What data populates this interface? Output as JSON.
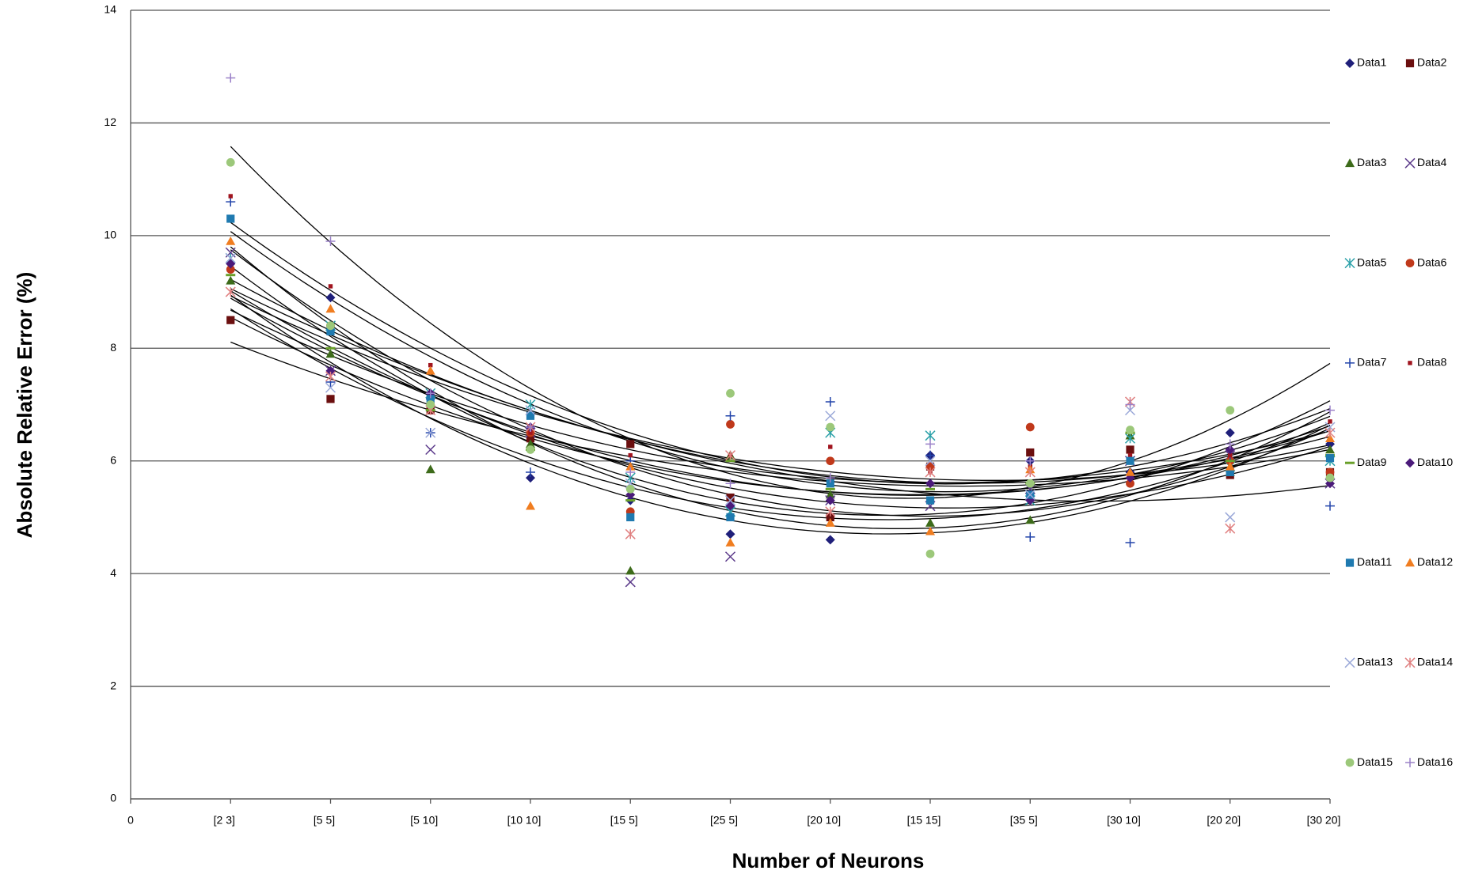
{
  "chart_data": {
    "type": "scatter",
    "x_label": "Number of Neurons",
    "y_label": "Absolute Relative Error (%)",
    "x": [
      1,
      2,
      3,
      4,
      5,
      6,
      7,
      8,
      9,
      10,
      11,
      12
    ],
    "xlim": [
      0,
      12
    ],
    "xticks": [
      0,
      {
        "value": 1,
        "label": "[2 3]"
      },
      {
        "value": 2,
        "label": "[5 5]"
      },
      {
        "value": 3,
        "label": "[5 10]"
      },
      {
        "value": 4,
        "label": "[10 10]"
      },
      {
        "value": 5,
        "label": "[15 5]"
      },
      {
        "value": 6,
        "label": "[25 5]"
      },
      {
        "value": 7,
        "label": "[20 10]"
      },
      {
        "value": 8,
        "label": "[15 15]"
      },
      {
        "value": 9,
        "label": "[35 5]"
      },
      {
        "value": 10,
        "label": "[30 10]"
      },
      {
        "value": 11,
        "label": "[20 20]"
      },
      {
        "value": 12,
        "label": "[30 20]"
      }
    ],
    "ylim": [
      0,
      14
    ],
    "yticks": [
      0,
      2,
      4,
      6,
      8,
      10,
      12,
      14
    ],
    "grid": true,
    "trendline": "poly2",
    "legend": "right",
    "series": [
      {
        "name": "Data1",
        "color": "#1f1f7a",
        "marker": "diamond",
        "values": [
          9.5,
          8.9,
          7.1,
          5.7,
          5.3,
          4.7,
          4.6,
          6.1,
          6.0,
          5.8,
          6.5,
          6.3
        ]
      },
      {
        "name": "Data2",
        "color": "#6b0f0f",
        "marker": "square",
        "values": [
          8.5,
          7.1,
          6.9,
          6.4,
          6.3,
          5.35,
          5.0,
          5.9,
          6.15,
          6.2,
          5.75,
          5.8
        ]
      },
      {
        "name": "Data3",
        "color": "#3d6b1a",
        "marker": "triangle",
        "values": [
          9.2,
          7.9,
          5.85,
          6.3,
          4.05,
          6.1,
          5.4,
          4.9,
          4.95,
          6.45,
          5.8,
          6.2
        ]
      },
      {
        "name": "Data4",
        "color": "#5b3a8a",
        "marker": "x",
        "values": [
          9.7,
          7.6,
          6.2,
          6.5,
          3.85,
          4.3,
          5.3,
          5.2,
          5.5,
          6.0,
          6.1,
          5.6
        ]
      },
      {
        "name": "Data5",
        "color": "#2aa0a8",
        "marker": "asterisk",
        "values": [
          9.6,
          8.4,
          7.2,
          7.0,
          5.7,
          5.1,
          6.5,
          6.45,
          5.3,
          6.4,
          5.9,
          6.0
        ]
      },
      {
        "name": "Data6",
        "color": "#c0391b",
        "marker": "circle",
        "values": [
          9.4,
          8.4,
          7.0,
          6.5,
          5.1,
          6.65,
          6.0,
          5.9,
          6.6,
          5.6,
          6.0,
          5.8
        ]
      },
      {
        "name": "Data7",
        "color": "#2244aa",
        "marker": "plus",
        "values": [
          10.6,
          7.4,
          6.5,
          5.8,
          6.0,
          6.8,
          7.05,
          6.1,
          4.65,
          4.55,
          6.0,
          5.2
        ]
      },
      {
        "name": "Data8",
        "color": "#a0141e",
        "marker": "small-square",
        "values": [
          10.7,
          9.1,
          7.7,
          6.5,
          6.1,
          6.1,
          6.25,
          5.8,
          5.9,
          6.1,
          6.1,
          6.7
        ]
      },
      {
        "name": "Data9",
        "color": "#6aa02a",
        "marker": "dash",
        "values": [
          9.3,
          8.0,
          6.9,
          6.2,
          5.3,
          6.0,
          5.5,
          5.5,
          5.6,
          6.5,
          6.0,
          6.1
        ]
      },
      {
        "name": "Data10",
        "color": "#4b1a7a",
        "marker": "diamond",
        "values": [
          9.5,
          7.6,
          7.2,
          6.6,
          5.4,
          5.2,
          5.3,
          5.6,
          5.3,
          5.7,
          6.2,
          5.6
        ]
      },
      {
        "name": "Data11",
        "color": "#1f7ab0",
        "marker": "square",
        "values": [
          10.3,
          8.3,
          7.1,
          6.8,
          5.0,
          5.0,
          5.6,
          5.3,
          5.4,
          6.0,
          5.8,
          6.05
        ]
      },
      {
        "name": "Data12",
        "color": "#f07d20",
        "marker": "triangle",
        "values": [
          9.9,
          8.7,
          7.6,
          5.2,
          5.9,
          4.55,
          4.9,
          4.75,
          5.85,
          5.8,
          5.9,
          6.4
        ]
      },
      {
        "name": "Data13",
        "color": "#9aa8d8",
        "marker": "x",
        "values": [
          9.6,
          7.3,
          6.5,
          6.9,
          5.6,
          5.3,
          6.8,
          6.0,
          5.4,
          6.9,
          5.0,
          6.6
        ]
      },
      {
        "name": "Data14",
        "color": "#e08080",
        "marker": "asterisk",
        "values": [
          9.0,
          7.5,
          6.9,
          6.6,
          4.7,
          6.1,
          5.1,
          5.8,
          5.8,
          7.05,
          4.8,
          6.5
        ]
      },
      {
        "name": "Data15",
        "color": "#9cc87a",
        "marker": "circle",
        "values": [
          11.3,
          8.4,
          7.0,
          6.2,
          5.5,
          7.2,
          6.6,
          4.35,
          5.6,
          6.55,
          6.9,
          5.7
        ]
      },
      {
        "name": "Data16",
        "color": "#9a80c8",
        "marker": "plus",
        "values": [
          12.8,
          9.9,
          7.2,
          6.6,
          5.8,
          5.6,
          5.7,
          6.3,
          6.0,
          7.0,
          6.3,
          6.9
        ]
      }
    ]
  }
}
